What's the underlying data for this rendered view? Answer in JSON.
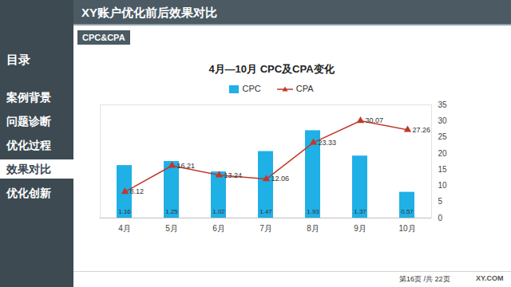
{
  "slide": {
    "header": "XY账户优化前后效果对比",
    "tag": "CPC&CPA",
    "menu_title": "目录",
    "menu": [
      "案例背景",
      "问题诊断",
      "优化过程",
      "效果对比",
      "优化创新"
    ],
    "menu_active": "效果对比",
    "footer": "第16页 /共 22页",
    "logo": "XY.COM"
  },
  "chart_data": {
    "type": "bar",
    "title": "4月—10月 CPC及CPA变化",
    "categories": [
      "4月",
      "5月",
      "6月",
      "7月",
      "8月",
      "9月",
      "10月"
    ],
    "series": [
      {
        "name": "CPC",
        "type": "bar",
        "color": "#1fb0e6",
        "values": [
          1.16,
          1.25,
          1.02,
          1.47,
          1.93,
          1.37,
          0.57
        ],
        "data_labels": true
      },
      {
        "name": "CPA",
        "type": "line",
        "color": "#c0392b",
        "marker": "triangle",
        "axis": "y2",
        "values": [
          8.12,
          16.21,
          13.24,
          12.06,
          23.33,
          30.07,
          27.26
        ],
        "data_labels": true
      }
    ],
    "ylim": [
      0,
      2.5
    ],
    "yticks": [],
    "y2lim": [
      0,
      35
    ],
    "y2ticks": [
      0,
      5,
      10,
      15,
      20,
      25,
      30,
      35
    ],
    "legend": "top",
    "grid": false
  }
}
